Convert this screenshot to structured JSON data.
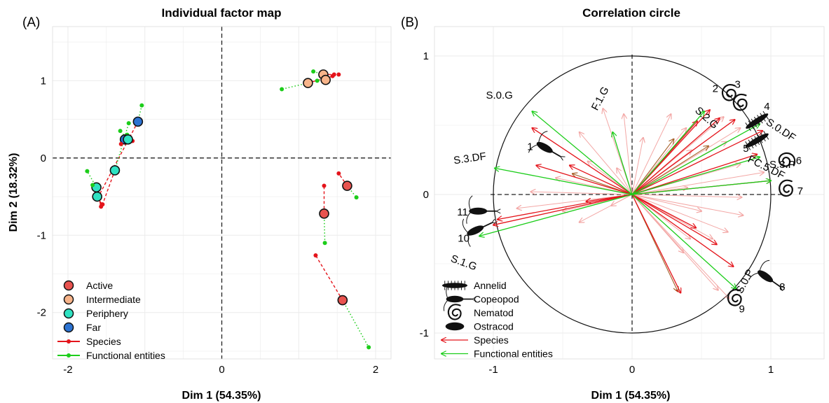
{
  "panels": {
    "a_letter": "(A)",
    "b_letter": "(B)"
  },
  "colors": {
    "active": "#e8534f",
    "intermediate": "#f7b48a",
    "periphery": "#2fe2c2",
    "far": "#2c73d2",
    "species": "#e4141b",
    "functional": "#1ccd1a",
    "grid": "#ebebeb",
    "mixed": "#a6622a"
  },
  "chart_data": [
    {
      "type": "scatter",
      "title": "Individual factor map",
      "xlabel": "Dim 1 (54.35%)",
      "ylabel": "Dim 2 (18.32%)",
      "xlim": [
        -2.2,
        2.2
      ],
      "ylim": [
        -2.6,
        1.7
      ],
      "xticks": [
        -2,
        0,
        2
      ],
      "yticks": [
        1,
        0,
        -1,
        -2
      ],
      "grid": true,
      "reference_lines": {
        "x": 0,
        "y": 0,
        "style": "dashed"
      },
      "legend_position": "bottom-left",
      "legend": [
        {
          "label": "Active",
          "kind": "circle",
          "color": "#e8534f"
        },
        {
          "label": "Intermediate",
          "kind": "circle",
          "color": "#f7b48a"
        },
        {
          "label": "Periphery",
          "kind": "circle",
          "color": "#2fe2c2"
        },
        {
          "label": "Far",
          "kind": "circle",
          "color": "#2c73d2"
        },
        {
          "label": "Species",
          "kind": "line",
          "color": "#e4141b"
        },
        {
          "label": "Functional entities",
          "kind": "line",
          "color": "#1ccd1a"
        }
      ],
      "groups": [
        {
          "class": "Far",
          "center": [
            -1.09,
            0.47
          ],
          "species": [
            -1.62,
            -0.53
          ],
          "functional": [
            -1.04,
            0.68
          ]
        },
        {
          "class": "Far",
          "center": [
            -1.26,
            0.24
          ],
          "species": [
            -1.16,
            0.22
          ],
          "functional": [
            -1.23,
            0.3
          ]
        },
        {
          "class": "Intermediate",
          "center": [
            1.32,
            1.08
          ],
          "species": [
            1.52,
            1.08
          ],
          "functional": [
            1.19,
            1.12
          ]
        },
        {
          "class": "Intermediate",
          "center": [
            1.12,
            0.97
          ],
          "species": [
            1.44,
            1.06
          ],
          "functional": [
            0.78,
            0.89
          ]
        },
        {
          "class": "Intermediate",
          "center": [
            1.35,
            1.01
          ],
          "species": [
            1.46,
            1.08
          ],
          "functional": [
            1.24,
            1.0
          ]
        },
        {
          "class": "Periphery",
          "center": [
            -1.22,
            0.24
          ],
          "species": [
            -1.31,
            0.18
          ],
          "functional": [
            -1.32,
            0.35
          ]
        },
        {
          "class": "Periphery",
          "center": [
            -1.39,
            -0.16
          ],
          "species": [
            -1.55,
            -0.6
          ],
          "functional": [
            -1.21,
            0.45
          ]
        },
        {
          "class": "Periphery",
          "center": [
            -1.63,
            -0.38
          ],
          "species": [
            -1.57,
            -0.63
          ],
          "functional": [
            -1.75,
            -0.17
          ]
        },
        {
          "class": "Periphery",
          "center": [
            -1.62,
            -0.5
          ],
          "species": [
            -1.56,
            -0.6
          ],
          "functional": [
            -1.68,
            -0.35
          ]
        },
        {
          "class": "Active",
          "center": [
            1.63,
            -0.36
          ],
          "species": [
            1.52,
            -0.2
          ],
          "functional": [
            1.75,
            -0.51
          ]
        },
        {
          "class": "Active",
          "center": [
            1.33,
            -0.72
          ],
          "species": [
            1.33,
            -0.36
          ],
          "functional": [
            1.34,
            -1.1
          ]
        },
        {
          "class": "Active",
          "center": [
            1.57,
            -1.84
          ],
          "species": [
            1.22,
            -1.26
          ],
          "functional": [
            1.91,
            -2.45
          ]
        }
      ]
    },
    {
      "type": "vector",
      "title": "Correlation circle",
      "xlabel": "Dim 1 (54.35%)",
      "xlim": [
        -1.5,
        1.5
      ],
      "ylim": [
        -1.22,
        1.22
      ],
      "xticks": [
        -1,
        0,
        1
      ],
      "yticks": [
        1,
        0,
        -1
      ],
      "grid": true,
      "unit_circle": true,
      "reference_lines": {
        "x": 0,
        "y": 0,
        "style": "dashed"
      },
      "legend_position": "bottom-left",
      "legend": [
        {
          "label": "Annelid",
          "kind": "annelid"
        },
        {
          "label": "Copeopod",
          "kind": "copepod"
        },
        {
          "label": "Nematod",
          "kind": "nematode"
        },
        {
          "label": "Ostracod",
          "kind": "ostracod"
        },
        {
          "label": "Species",
          "kind": "arrow",
          "color": "#e4141b"
        },
        {
          "label": "Functional entities",
          "kind": "arrow",
          "color": "#1ccd1a"
        }
      ],
      "labeled_vectors": [
        {
          "label": "S.0.G",
          "x": -0.72,
          "y": 0.6,
          "color": "functional"
        },
        {
          "label": "F.1.G",
          "x": -0.14,
          "y": 0.45,
          "color": "functional"
        },
        {
          "label": "S.2.G",
          "x": 0.52,
          "y": 0.6,
          "color": "functional"
        },
        {
          "label": "S.0.DF",
          "x": 0.92,
          "y": 0.51,
          "color": "functional"
        },
        {
          "label": "FC.5.DF",
          "x": 0.92,
          "y": 0.27,
          "color": "functional"
        },
        {
          "label": "S.3.DF",
          "x": -0.99,
          "y": 0.19,
          "color": "functional"
        },
        {
          "label": "S.3.P",
          "x": 1.0,
          "y": 0.1,
          "color": "functional"
        },
        {
          "label": "S.1.G",
          "x": -1.1,
          "y": -0.3,
          "color": "functional"
        },
        {
          "label": "S.0.P",
          "x": 0.75,
          "y": -0.68,
          "color": "functional"
        }
      ],
      "species_vectors": [
        [
          0.94,
          0.46
        ],
        [
          0.74,
          0.54
        ],
        [
          0.56,
          0.61
        ],
        [
          0.47,
          0.53
        ],
        [
          0.9,
          0.29
        ],
        [
          1.0,
          0.1
        ],
        [
          0.73,
          -0.52
        ],
        [
          -1.0,
          -0.22
        ],
        [
          -0.97,
          -0.18
        ],
        [
          -0.69,
          0.21
        ],
        [
          -0.45,
          0.21
        ],
        [
          0.63,
          0.55
        ],
        [
          0.61,
          -0.36
        ],
        [
          -0.72,
          0.48
        ],
        [
          0.35,
          -0.71
        ],
        [
          -0.33,
          -0.05
        ],
        [
          0.46,
          -0.24
        ]
      ],
      "faint_vectors": [
        [
          0.78,
          0.48
        ],
        [
          0.66,
          0.56
        ],
        [
          0.39,
          0.48
        ],
        [
          0.28,
          0.58
        ],
        [
          -0.06,
          0.58
        ],
        [
          -0.21,
          0.62
        ],
        [
          -0.38,
          0.45
        ],
        [
          -0.32,
          0.24
        ],
        [
          -0.55,
          0.12
        ],
        [
          -0.73,
          0.02
        ],
        [
          -0.5,
          -0.12
        ],
        [
          -0.83,
          -0.1
        ],
        [
          -0.38,
          -0.2
        ],
        [
          -0.11,
          0.19
        ],
        [
          0.95,
          0.16
        ],
        [
          0.78,
          0.22
        ],
        [
          0.68,
          0.38
        ],
        [
          0.79,
          -0.02
        ],
        [
          0.8,
          -0.15
        ],
        [
          0.5,
          -0.12
        ],
        [
          0.69,
          -0.27
        ],
        [
          0.58,
          -0.32
        ],
        [
          0.37,
          -0.42
        ],
        [
          0.62,
          -0.69
        ],
        [
          0.08,
          0.41
        ],
        [
          0.4,
          0.05
        ],
        [
          -0.15,
          -0.08
        ],
        [
          0.7,
          -0.75
        ],
        [
          0.43,
          0.32
        ],
        [
          0.42,
          -0.32
        ]
      ],
      "mixed_vectors": [
        [
          0.33,
          -0.7
        ],
        [
          -0.43,
          0.15
        ],
        [
          0.55,
          0.35
        ],
        [
          0.3,
          0.4
        ]
      ],
      "organisms": [
        {
          "number": "1",
          "kind": "copepod",
          "x": -0.63,
          "y": 0.34
        },
        {
          "number": "2",
          "kind": "nematode",
          "x": 0.7,
          "y": 0.73
        },
        {
          "number": "3",
          "kind": "nematode",
          "x": 0.78,
          "y": 0.66
        },
        {
          "number": "4",
          "kind": "annelid",
          "x": 0.9,
          "y": 0.53
        },
        {
          "number": "5",
          "kind": "annelid",
          "x": 0.9,
          "y": 0.39
        },
        {
          "number": "6",
          "kind": "nematode",
          "x": 1.11,
          "y": 0.25
        },
        {
          "number": "7",
          "kind": "nematode",
          "x": 1.11,
          "y": 0.04
        },
        {
          "number": "8",
          "kind": "copepod",
          "x": 0.96,
          "y": -0.59
        },
        {
          "number": "9",
          "kind": "nematode",
          "x": 0.74,
          "y": -0.75
        },
        {
          "number": "10",
          "kind": "copepod",
          "x": -1.13,
          "y": -0.26
        },
        {
          "number": "11",
          "kind": "copepod",
          "x": -1.11,
          "y": -0.12
        }
      ]
    }
  ]
}
